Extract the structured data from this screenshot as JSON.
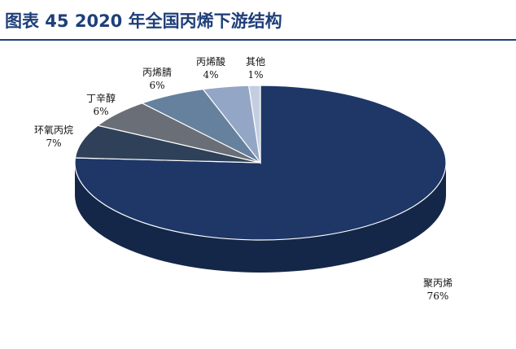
{
  "title": "图表 45   2020 年全国丙烯下游结构",
  "chart_data": {
    "type": "pie",
    "title": "2020 年全国丙烯下游结构",
    "figure_label": "图表 45",
    "slices": [
      {
        "label": "聚丙烯",
        "value": 76,
        "display": "76%",
        "color": "#1e3767"
      },
      {
        "label": "环氧丙烷",
        "value": 7,
        "display": "7%",
        "color": "#2f4159"
      },
      {
        "label": "丁辛醇",
        "value": 6,
        "display": "6%",
        "color": "#6a6f77"
      },
      {
        "label": "丙烯腈",
        "value": 6,
        "display": "6%",
        "color": "#66819e"
      },
      {
        "label": "丙烯酸",
        "value": 4,
        "display": "4%",
        "color": "#93a6c5"
      },
      {
        "label": "其他",
        "value": 1,
        "display": "1%",
        "color": "#c3cfe0"
      }
    ]
  }
}
